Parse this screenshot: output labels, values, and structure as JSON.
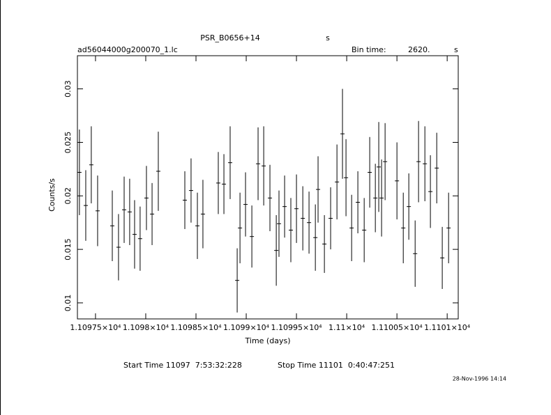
{
  "chart_data": {
    "type": "errorbar",
    "title": "PSR_B0656+14",
    "title_unit": "s",
    "file": "ad56044000g200070_1.lc",
    "bin_time_label": "Bin time:",
    "bin_time": "2620.",
    "bin_time_unit": "s",
    "xlabel": "Time (days)",
    "ylabel": "Counts/s",
    "start_time": "Start Time 11097  7:53:32:228",
    "stop_time": "Stop Time 11101  0:40:47:251",
    "date": "28-Nov-1996 14:14",
    "color": "#000000",
    "xlim": [
      11097.32,
      11101.11
    ],
    "xticks": [
      {
        "value": 11097.5,
        "label": "1.10975×10⁴"
      },
      {
        "value": 11098,
        "label": "1.1098×10⁴"
      },
      {
        "value": 11098.5,
        "label": "1.10985×10⁴"
      },
      {
        "value": 11099,
        "label": "1.1099×10⁴"
      },
      {
        "value": 11099.5,
        "label": "1.10995×10⁴"
      },
      {
        "value": 11100,
        "label": "1.11×10⁴"
      },
      {
        "value": 11100.5,
        "label": "1.11005×10⁴"
      },
      {
        "value": 11101,
        "label": "1.1101×10⁴"
      }
    ],
    "ylim": [
      0.0085,
      0.0331
    ],
    "yticks": [
      0.01,
      0.015,
      0.02,
      0.025,
      0.03
    ],
    "x": [
      11097.34,
      11097.403,
      11097.458,
      11097.521,
      11097.667,
      11097.729,
      11097.785,
      11097.84,
      11097.889,
      11097.944,
      11098.007,
      11098.063,
      11098.125,
      11098.389,
      11098.451,
      11098.514,
      11098.569,
      11098.722,
      11098.778,
      11098.84,
      11098.91,
      11098.938,
      11098.993,
      11099.056,
      11099.118,
      11099.174,
      11099.236,
      11099.299,
      11099.326,
      11099.382,
      11099.444,
      11099.5,
      11099.563,
      11099.625,
      11099.688,
      11099.715,
      11099.778,
      11099.84,
      11099.903,
      11099.958,
      11099.993,
      11100.049,
      11100.111,
      11100.174,
      11100.229,
      11100.285,
      11100.319,
      11100.347,
      11100.382,
      11100.5,
      11100.563,
      11100.618,
      11100.681,
      11100.715,
      11100.778,
      11100.833,
      11100.896,
      11100.951,
      11101.014
    ],
    "values": [
      0.0222,
      0.0191,
      0.0229,
      0.0186,
      0.0172,
      0.0152,
      0.0187,
      0.0185,
      0.0164,
      0.016,
      0.0198,
      0.0183,
      0.0223,
      0.0196,
      0.0205,
      0.0172,
      0.0183,
      0.0212,
      0.0211,
      0.0231,
      0.0121,
      0.017,
      0.0192,
      0.0162,
      0.023,
      0.0228,
      0.0198,
      0.0149,
      0.0174,
      0.019,
      0.0168,
      0.0188,
      0.0179,
      0.0175,
      0.0161,
      0.0206,
      0.0155,
      0.0179,
      0.0213,
      0.0258,
      0.0217,
      0.017,
      0.0194,
      0.0168,
      0.0222,
      0.0198,
      0.0227,
      0.0198,
      0.0232,
      0.0214,
      0.017,
      0.019,
      0.0146,
      0.0232,
      0.023,
      0.0204,
      0.0226,
      0.0142,
      0.017
    ],
    "errors": [
      0.004,
      0.0033,
      0.0036,
      0.0033,
      0.0033,
      0.0031,
      0.0031,
      0.0031,
      0.0032,
      0.003,
      0.003,
      0.0029,
      0.0037,
      0.0027,
      0.003,
      0.0031,
      0.0032,
      0.0029,
      0.0028,
      0.0034,
      0.003,
      0.0033,
      0.003,
      0.0029,
      0.0034,
      0.0037,
      0.0031,
      0.0033,
      0.0031,
      0.0029,
      0.003,
      0.0032,
      0.003,
      0.0029,
      0.0031,
      0.0031,
      0.0027,
      0.0029,
      0.0035,
      0.0042,
      0.0036,
      0.0031,
      0.0029,
      0.003,
      0.0033,
      0.0032,
      0.0042,
      0.0036,
      0.0036,
      0.0036,
      0.0033,
      0.0031,
      0.0031,
      0.0038,
      0.0035,
      0.0034,
      0.0033,
      0.0029,
      0.0033
    ]
  }
}
